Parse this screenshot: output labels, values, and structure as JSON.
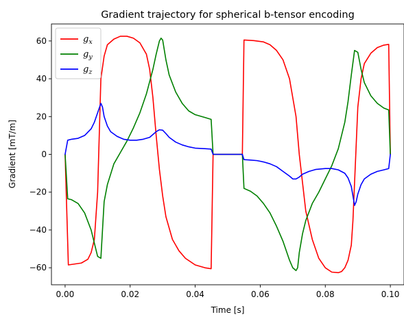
{
  "chart_data": {
    "type": "line",
    "title": "Gradient trajectory for spherical b-tensor encoding",
    "xlabel": "Time [s]",
    "ylabel": "Gradient [mT/m]",
    "xlim": [
      -0.0042,
      0.1042
    ],
    "ylim": [
      -69,
      69
    ],
    "xticks": [
      0.0,
      0.02,
      0.04,
      0.06,
      0.08,
      0.1
    ],
    "xtick_labels": [
      "0.00",
      "0.02",
      "0.04",
      "0.06",
      "0.08",
      "0.10"
    ],
    "yticks": [
      -60,
      -40,
      -20,
      0,
      20,
      40,
      60
    ],
    "ytick_labels": [
      "−60",
      "−40",
      "−20",
      "0",
      "20",
      "40",
      "60"
    ],
    "grid": false,
    "legend_position": "top-left",
    "series": [
      {
        "name": "g",
        "subscript": "x",
        "color": "#ff0000",
        "points": [
          [
            0.0,
            0
          ],
          [
            0.001,
            -58.5
          ],
          [
            0.003,
            -58
          ],
          [
            0.005,
            -57.5
          ],
          [
            0.007,
            -55.5
          ],
          [
            0.008,
            -52
          ],
          [
            0.009,
            -45
          ],
          [
            0.01,
            -20
          ],
          [
            0.0105,
            10
          ],
          [
            0.011,
            40
          ],
          [
            0.012,
            52
          ],
          [
            0.013,
            58
          ],
          [
            0.015,
            61
          ],
          [
            0.017,
            62.5
          ],
          [
            0.019,
            62.5
          ],
          [
            0.021,
            61.5
          ],
          [
            0.023,
            59
          ],
          [
            0.025,
            53
          ],
          [
            0.026,
            45
          ],
          [
            0.027,
            30
          ],
          [
            0.028,
            10
          ],
          [
            0.029,
            -8
          ],
          [
            0.03,
            -22
          ],
          [
            0.031,
            -33
          ],
          [
            0.033,
            -45
          ],
          [
            0.035,
            -51
          ],
          [
            0.037,
            -55
          ],
          [
            0.04,
            -58.5
          ],
          [
            0.043,
            -60
          ],
          [
            0.0449,
            -60.5
          ],
          [
            0.0455,
            0
          ],
          [
            0.0545,
            0
          ],
          [
            0.055,
            60.5
          ],
          [
            0.058,
            60.2
          ],
          [
            0.061,
            59.5
          ],
          [
            0.063,
            58
          ],
          [
            0.065,
            55
          ],
          [
            0.067,
            50
          ],
          [
            0.069,
            40
          ],
          [
            0.07,
            30
          ],
          [
            0.071,
            20
          ],
          [
            0.072,
            0
          ],
          [
            0.073,
            -15
          ],
          [
            0.074,
            -30
          ],
          [
            0.076,
            -45
          ],
          [
            0.078,
            -55
          ],
          [
            0.08,
            -60
          ],
          [
            0.082,
            -62.3
          ],
          [
            0.084,
            -62.6
          ],
          [
            0.085,
            -62
          ],
          [
            0.086,
            -60
          ],
          [
            0.087,
            -56
          ],
          [
            0.088,
            -48
          ],
          [
            0.0885,
            -35
          ],
          [
            0.089,
            -15
          ],
          [
            0.0895,
            5
          ],
          [
            0.09,
            25
          ],
          [
            0.091,
            40
          ],
          [
            0.092,
            48
          ],
          [
            0.094,
            53.5
          ],
          [
            0.096,
            56.5
          ],
          [
            0.098,
            57.8
          ],
          [
            0.0995,
            58.2
          ],
          [
            0.1,
            0
          ]
        ]
      },
      {
        "name": "g",
        "subscript": "y",
        "color": "#008000",
        "points": [
          [
            0.0,
            0
          ],
          [
            0.0008,
            -23.5
          ],
          [
            0.002,
            -24
          ],
          [
            0.004,
            -26
          ],
          [
            0.006,
            -31
          ],
          [
            0.008,
            -40
          ],
          [
            0.01,
            -54
          ],
          [
            0.011,
            -55
          ],
          [
            0.0115,
            -40
          ],
          [
            0.012,
            -25
          ],
          [
            0.013,
            -16
          ],
          [
            0.015,
            -5
          ],
          [
            0.017,
            1
          ],
          [
            0.019,
            7
          ],
          [
            0.021,
            14
          ],
          [
            0.023,
            22
          ],
          [
            0.025,
            32
          ],
          [
            0.027,
            45
          ],
          [
            0.028,
            53
          ],
          [
            0.029,
            60
          ],
          [
            0.0295,
            61.5
          ],
          [
            0.03,
            60.5
          ],
          [
            0.031,
            50
          ],
          [
            0.032,
            42
          ],
          [
            0.034,
            33
          ],
          [
            0.036,
            27
          ],
          [
            0.038,
            23
          ],
          [
            0.04,
            21
          ],
          [
            0.043,
            19.5
          ],
          [
            0.0449,
            18.5
          ],
          [
            0.0455,
            0
          ],
          [
            0.0545,
            0
          ],
          [
            0.055,
            -18
          ],
          [
            0.057,
            -19.5
          ],
          [
            0.059,
            -22
          ],
          [
            0.061,
            -26
          ],
          [
            0.063,
            -31
          ],
          [
            0.065,
            -38
          ],
          [
            0.067,
            -46
          ],
          [
            0.069,
            -56
          ],
          [
            0.07,
            -60
          ],
          [
            0.071,
            -61.5
          ],
          [
            0.0715,
            -60
          ],
          [
            0.072,
            -52
          ],
          [
            0.073,
            -42
          ],
          [
            0.074,
            -35
          ],
          [
            0.076,
            -26
          ],
          [
            0.078,
            -20
          ],
          [
            0.08,
            -13
          ],
          [
            0.082,
            -6
          ],
          [
            0.084,
            3
          ],
          [
            0.086,
            17
          ],
          [
            0.087,
            28
          ],
          [
            0.088,
            42
          ],
          [
            0.089,
            55
          ],
          [
            0.09,
            54
          ],
          [
            0.091,
            45
          ],
          [
            0.092,
            38
          ],
          [
            0.094,
            31
          ],
          [
            0.096,
            27
          ],
          [
            0.098,
            24.5
          ],
          [
            0.0995,
            23.5
          ],
          [
            0.1,
            0
          ]
        ]
      },
      {
        "name": "g",
        "subscript": "z",
        "color": "#0000ff",
        "points": [
          [
            0.0,
            0
          ],
          [
            0.0008,
            7.5
          ],
          [
            0.002,
            8
          ],
          [
            0.004,
            8.5
          ],
          [
            0.006,
            10
          ],
          [
            0.008,
            13.5
          ],
          [
            0.009,
            17
          ],
          [
            0.01,
            22
          ],
          [
            0.011,
            27
          ],
          [
            0.0115,
            25
          ],
          [
            0.012,
            20
          ],
          [
            0.013,
            15
          ],
          [
            0.014,
            12
          ],
          [
            0.016,
            9.5
          ],
          [
            0.018,
            8
          ],
          [
            0.02,
            7.5
          ],
          [
            0.022,
            7.5
          ],
          [
            0.024,
            8
          ],
          [
            0.026,
            9
          ],
          [
            0.027,
            10.5
          ],
          [
            0.028,
            12
          ],
          [
            0.029,
            13
          ],
          [
            0.03,
            12.8
          ],
          [
            0.031,
            11
          ],
          [
            0.032,
            9
          ],
          [
            0.034,
            6.5
          ],
          [
            0.036,
            5
          ],
          [
            0.038,
            4
          ],
          [
            0.04,
            3.3
          ],
          [
            0.043,
            3
          ],
          [
            0.0449,
            2.8
          ],
          [
            0.0455,
            0
          ],
          [
            0.0545,
            0
          ],
          [
            0.055,
            -2.8
          ],
          [
            0.057,
            -3
          ],
          [
            0.059,
            -3.3
          ],
          [
            0.061,
            -4
          ],
          [
            0.063,
            -5
          ],
          [
            0.065,
            -6.5
          ],
          [
            0.067,
            -9
          ],
          [
            0.069,
            -11.5
          ],
          [
            0.07,
            -13
          ],
          [
            0.071,
            -13
          ],
          [
            0.072,
            -12
          ],
          [
            0.073,
            -10.5
          ],
          [
            0.075,
            -9
          ],
          [
            0.077,
            -8
          ],
          [
            0.08,
            -7.5
          ],
          [
            0.082,
            -7.5
          ],
          [
            0.084,
            -8.2
          ],
          [
            0.086,
            -10
          ],
          [
            0.087,
            -12.5
          ],
          [
            0.088,
            -17
          ],
          [
            0.0885,
            -22
          ],
          [
            0.089,
            -27
          ],
          [
            0.0895,
            -25
          ],
          [
            0.09,
            -21
          ],
          [
            0.091,
            -16
          ],
          [
            0.092,
            -13
          ],
          [
            0.094,
            -10.5
          ],
          [
            0.096,
            -9
          ],
          [
            0.098,
            -8.2
          ],
          [
            0.0995,
            -7.5
          ],
          [
            0.1,
            0
          ]
        ]
      }
    ]
  }
}
